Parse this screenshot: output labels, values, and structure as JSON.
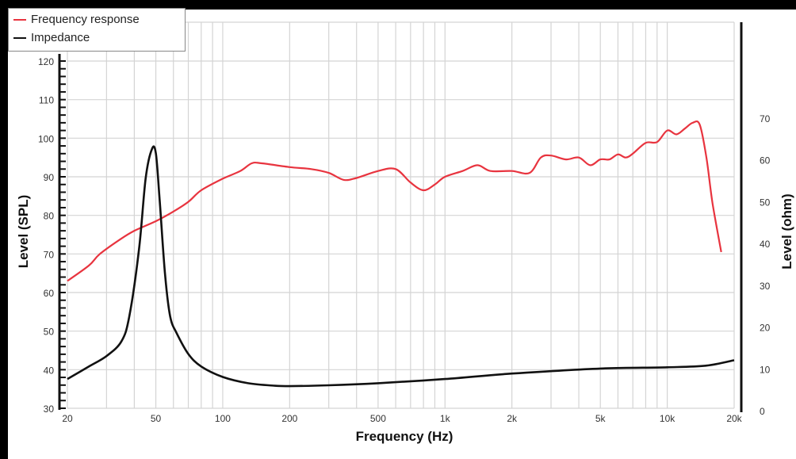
{
  "legend": {
    "items": [
      {
        "label": "Frequency response",
        "color": "#e8343f"
      },
      {
        "label": "Impedance",
        "color": "#111111"
      }
    ]
  },
  "axes": {
    "x_label": "Frequency (Hz)",
    "y_left_label": "Level (SPL)",
    "y_right_label": "Level (ohm)"
  },
  "chart_data": {
    "type": "line",
    "title": "",
    "xlabel": "Frequency (Hz)",
    "ylabel": "Level (SPL)",
    "ylabel_right": "Level (ohm)",
    "x_scale": "log",
    "xlim": [
      20,
      20000
    ],
    "ylim": [
      30,
      120
    ],
    "ylim_right": [
      0,
      75
    ],
    "x_ticks": [
      "20",
      "50",
      "100",
      "200",
      "500",
      "1k",
      "2k",
      "5k",
      "10k",
      "20k"
    ],
    "y_ticks": [
      30,
      40,
      50,
      60,
      70,
      80,
      90,
      100,
      110,
      120
    ],
    "y_right_ticks": [
      0,
      10,
      20,
      30,
      40,
      50,
      60,
      70
    ],
    "grid": true,
    "legend_position": "top-left",
    "series": [
      {
        "name": "Frequency response",
        "axis": "left",
        "color": "#e8343f",
        "x": [
          20,
          25,
          28,
          35,
          40,
          50,
          60,
          70,
          80,
          100,
          120,
          135,
          150,
          200,
          250,
          300,
          350,
          400,
          500,
          600,
          700,
          800,
          900,
          1000,
          1200,
          1400,
          1600,
          2000,
          2400,
          2700,
          3000,
          3500,
          4000,
          4500,
          5000,
          5500,
          6000,
          6500,
          7000,
          8000,
          9000,
          10000,
          11000,
          12000,
          13000,
          14000,
          15000,
          16000,
          17500
        ],
        "values": [
          63,
          67,
          70,
          74,
          76,
          78.5,
          81,
          83.5,
          86.5,
          89.5,
          91.5,
          93.5,
          93.5,
          92.5,
          92,
          91,
          89.2,
          89.7,
          91.5,
          92,
          88.5,
          86.5,
          88,
          90,
          91.5,
          93,
          91.5,
          91.5,
          91,
          95,
          95.5,
          94.5,
          95,
          93,
          94.5,
          94.5,
          95.8,
          95,
          96,
          98.8,
          99,
          102,
          101,
          102.5,
          104,
          103.5,
          95,
          83,
          70.5
        ]
      },
      {
        "name": "Impedance",
        "axis": "right",
        "color": "#111111",
        "x": [
          20,
          25,
          30,
          35,
          38,
          42,
          45,
          48,
          50,
          52,
          55,
          58,
          62,
          70,
          80,
          100,
          130,
          170,
          200,
          300,
          500,
          1000,
          2000,
          5000,
          10000,
          15000,
          20000
        ],
        "values": [
          7,
          10,
          12.5,
          16,
          22,
          38,
          55,
          62,
          61,
          50,
          32,
          22,
          18,
          13,
          10,
          7.5,
          6,
          5.4,
          5.3,
          5.5,
          6,
          7,
          8.3,
          9.5,
          9.8,
          10.2,
          11.5
        ]
      }
    ]
  }
}
